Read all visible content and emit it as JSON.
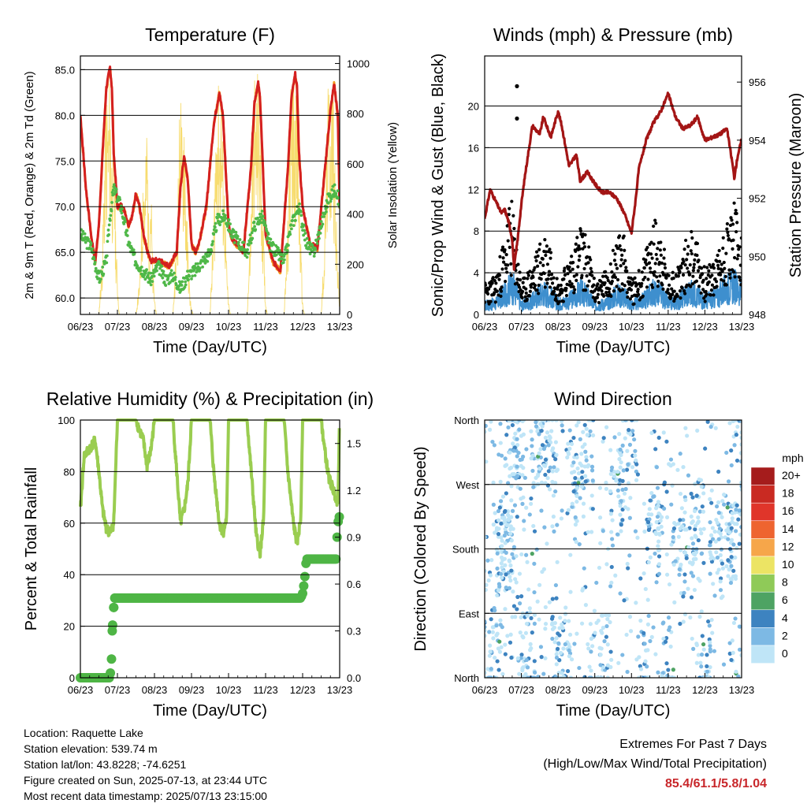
{
  "footer": {
    "location": "Location: Raquette Lake",
    "elevation": "Station elevation: 539.74 m",
    "latlon": "Station lat/lon: 43.8228; -74.6251",
    "created": "Figure created on Sun, 2025-07-13, at 23:44 UTC",
    "recent": "Most recent data timestamp: 2025/07/13 23:15:00",
    "extremes_title": "Extremes For Past 7 Days",
    "extremes_sub": "(High/Low/Max Wind/Total Precipitation)",
    "extremes_values": "85.4/61.1/5.8/1.04"
  },
  "colors": {
    "temp2m": "#d42020",
    "temp9m": "#f59a23",
    "dewpoint": "#4fb848",
    "solar": "#f7dc6f",
    "sonic_wind": "#3e8fce",
    "gust": "#000000",
    "pressure": "#a31515",
    "rh": "#9acd50",
    "precip": "#4eb545"
  },
  "chart_data": [
    {
      "type": "line",
      "title": "Temperature (F)",
      "xlabel": "Time (Day/UTC)",
      "ylabel": "2m & 9m T (Red, Orange) & 2m Td (Green)",
      "y2label": "Solar Insolation (Yellow)",
      "x_ticks": [
        "06/23",
        "07/23",
        "08/23",
        "09/23",
        "10/23",
        "11/23",
        "12/23",
        "13/23"
      ],
      "y_ticks": [
        "60.0",
        "65.0",
        "70.0",
        "75.0",
        "80.0",
        "85.0"
      ],
      "y2_ticks": [
        "0",
        "200",
        "400",
        "600",
        "800",
        "1000"
      ],
      "ylim": [
        58.2,
        86.5
      ],
      "y2lim": [
        0,
        1030
      ],
      "xlim": [
        0,
        7
      ],
      "grid": true,
      "series": [
        {
          "key": "temp2m",
          "x": [
            0,
            0.15,
            0.3,
            0.4,
            0.5,
            0.6,
            0.7,
            0.8,
            0.85,
            0.9,
            1.0,
            1.1,
            1.2,
            1.3,
            1.4,
            1.5,
            1.6,
            1.7,
            1.8,
            1.9,
            2.0,
            2.2,
            2.4,
            2.6,
            2.7,
            2.8,
            2.9,
            3.0,
            3.1,
            3.2,
            3.4,
            3.6,
            3.75,
            3.85,
            3.95,
            4.0,
            4.1,
            4.2,
            4.4,
            4.6,
            4.7,
            4.8,
            4.85,
            4.9,
            5.0,
            5.1,
            5.2,
            5.4,
            5.6,
            5.7,
            5.8,
            5.85,
            5.9,
            6.0,
            6.1,
            6.2,
            6.4,
            6.6,
            6.75,
            6.85,
            6.95,
            7.0
          ],
          "y": [
            80.0,
            72.0,
            66.5,
            64.0,
            68.0,
            76.0,
            83.0,
            85.3,
            83.0,
            76.0,
            70.0,
            70.2,
            69.5,
            68.0,
            69.0,
            71.5,
            70.0,
            67.0,
            65.2,
            64.0,
            64.2,
            64.0,
            63.5,
            65.0,
            72.0,
            75.5,
            73.0,
            66.0,
            65.0,
            66.0,
            70.0,
            79.0,
            82.5,
            80.0,
            72.0,
            68.0,
            66.5,
            66.0,
            65.0,
            74.0,
            81.5,
            83.5,
            82.0,
            77.0,
            67.0,
            65.5,
            64.0,
            63.0,
            74.0,
            82.0,
            84.5,
            83.0,
            76.0,
            70.0,
            68.0,
            66.0,
            65.5,
            74.0,
            80.5,
            83.5,
            80.0,
            70.0
          ]
        },
        {
          "key": "dewpoint",
          "x": [
            0,
            0.3,
            0.5,
            0.7,
            0.8,
            0.9,
            1.0,
            1.1,
            1.3,
            1.5,
            1.7,
            1.9,
            2.1,
            2.3,
            2.5,
            2.7,
            2.9,
            3.1,
            3.3,
            3.5,
            3.7,
            3.9,
            4.1,
            4.3,
            4.5,
            4.7,
            4.9,
            5.1,
            5.3,
            5.5,
            5.7,
            5.9,
            6.1,
            6.3,
            6.5,
            6.7,
            6.9,
            7.0
          ],
          "y": [
            67.0,
            65.5,
            62.0,
            64.0,
            69.0,
            72.0,
            71.0,
            70.0,
            66.0,
            64.0,
            63.0,
            62.0,
            63.5,
            62.0,
            62.5,
            61.0,
            62.5,
            63.0,
            64.0,
            65.0,
            68.5,
            69.0,
            67.0,
            66.0,
            65.0,
            68.0,
            69.0,
            66.0,
            65.0,
            64.0,
            68.0,
            70.0,
            66.0,
            65.0,
            68.0,
            71.0,
            72.0,
            70.0
          ]
        },
        {
          "key": "solar",
          "x": [
            0.05,
            0.25,
            0.5,
            0.6,
            0.65,
            0.7,
            0.75,
            0.8,
            0.85,
            0.9,
            0.95,
            1.0,
            1.05,
            1.2,
            1.5,
            1.6,
            1.65,
            1.7,
            1.75,
            1.8,
            1.85,
            1.9,
            1.95,
            2.0,
            2.05,
            2.2,
            2.5,
            2.6,
            2.65,
            2.7,
            2.75,
            2.8,
            2.85,
            2.9,
            2.95,
            3.0,
            3.05,
            3.2,
            3.5,
            3.6,
            3.65,
            3.7,
            3.75,
            3.8,
            3.85,
            3.9,
            3.95,
            4.0,
            4.05,
            4.2,
            4.5,
            4.6,
            4.65,
            4.7,
            4.75,
            4.8,
            4.85,
            4.9,
            4.95,
            5.0,
            5.05,
            5.2,
            5.5,
            5.6,
            5.65,
            5.7,
            5.75,
            5.8,
            5.85,
            5.9,
            5.95,
            6.0,
            6.05,
            6.2,
            6.5,
            6.6,
            6.65,
            6.7,
            6.75,
            6.8,
            6.85,
            6.9,
            6.95,
            7.0
          ],
          "y": [
            0,
            0,
            0,
            300,
            700,
            950,
            880,
            1000,
            700,
            900,
            400,
            150,
            0,
            0,
            0,
            150,
            400,
            700,
            550,
            850,
            300,
            650,
            200,
            80,
            0,
            0,
            0,
            350,
            650,
            980,
            700,
            950,
            500,
            300,
            100,
            20,
            0,
            0,
            0,
            400,
            800,
            1000,
            850,
            950,
            700,
            500,
            200,
            50,
            0,
            0,
            0,
            400,
            800,
            980,
            900,
            1000,
            850,
            600,
            300,
            50,
            0,
            0,
            0,
            400,
            850,
            980,
            950,
            1000,
            850,
            600,
            300,
            50,
            0,
            0,
            0,
            350,
            750,
            950,
            900,
            1000,
            800,
            500,
            200,
            40
          ]
        }
      ]
    },
    {
      "type": "scatter",
      "title": "Winds (mph) & Pressure (mb)",
      "xlabel": "Time (Day/UTC)",
      "ylabel": "Sonic/Prop Wind & Gust (Blue, Black)",
      "y2label": "Station Pressure (Maroon)",
      "x_ticks": [
        "06/23",
        "07/23",
        "08/23",
        "09/23",
        "10/23",
        "11/23",
        "12/23",
        "13/23"
      ],
      "y_ticks": [
        "0",
        "4",
        "8",
        "12",
        "16",
        "20"
      ],
      "y2_ticks": [
        "948",
        "950",
        "952",
        "954",
        "956"
      ],
      "ylim": [
        0,
        24.8
      ],
      "y2lim": [
        948,
        956.9
      ],
      "xlim": [
        0,
        7
      ],
      "grid": true,
      "series": [
        {
          "key": "pressure",
          "x": [
            0,
            0.15,
            0.3,
            0.45,
            0.55,
            0.65,
            0.75,
            0.8,
            0.9,
            1.0,
            1.1,
            1.3,
            1.5,
            1.6,
            1.8,
            2.0,
            2.1,
            2.3,
            2.5,
            2.6,
            2.8,
            3.0,
            3.2,
            3.4,
            3.6,
            3.8,
            4.0,
            4.1,
            4.2,
            4.4,
            4.6,
            4.8,
            5.0,
            5.2,
            5.4,
            5.6,
            5.8,
            6.0,
            6.2,
            6.4,
            6.6,
            6.75,
            6.8,
            6.9,
            7.0
          ],
          "y": [
            951.3,
            952.3,
            951.9,
            951.5,
            951.6,
            951.2,
            950.6,
            949.6,
            950.6,
            951.8,
            952.8,
            954.5,
            954.2,
            954.8,
            954.1,
            955.0,
            954.5,
            953.1,
            953.5,
            952.6,
            952.9,
            952.5,
            952.2,
            952.2,
            952.0,
            951.5,
            950.8,
            951.8,
            953.0,
            954.0,
            954.6,
            955.0,
            955.6,
            954.8,
            954.4,
            954.5,
            954.8,
            954.0,
            954.1,
            954.2,
            954.4,
            953.2,
            952.7,
            953.5,
            954.0
          ]
        },
        {
          "key": "sonic_wind",
          "x": [
            0,
            0.3,
            0.6,
            0.7,
            0.8,
            0.9,
            1.0,
            1.3,
            1.6,
            1.8,
            2.0,
            2.3,
            2.6,
            2.8,
            3.0,
            3.3,
            3.6,
            3.8,
            4.0,
            4.3,
            4.6,
            4.8,
            5.0,
            5.3,
            5.6,
            5.8,
            6.0,
            6.3,
            6.6,
            6.8,
            7.0
          ],
          "y": [
            1.0,
            1.2,
            2.5,
            3.0,
            2.8,
            2.0,
            1.0,
            1.5,
            2.5,
            2.0,
            1.2,
            1.5,
            2.5,
            2.0,
            1.0,
            1.2,
            2.2,
            2.0,
            1.0,
            1.5,
            2.5,
            2.2,
            1.2,
            1.5,
            2.5,
            2.0,
            1.5,
            1.8,
            3.0,
            3.2,
            2.5
          ]
        },
        {
          "key": "gust",
          "x": [
            0,
            0.3,
            0.6,
            0.7,
            0.8,
            0.9,
            1.0,
            1.3,
            1.6,
            1.8,
            2.0,
            2.3,
            2.6,
            2.8,
            3.0,
            3.3,
            3.6,
            3.8,
            4.0,
            4.3,
            4.6,
            4.8,
            5.0,
            5.3,
            5.6,
            5.8,
            6.0,
            6.3,
            6.6,
            6.8,
            7.0
          ],
          "y": [
            2.5,
            3.0,
            7.0,
            9.5,
            7.5,
            5.0,
            2.5,
            4.0,
            6.5,
            6.0,
            2.5,
            4.5,
            7.0,
            6.0,
            2.5,
            3.5,
            6.0,
            6.5,
            2.5,
            4.0,
            7.5,
            7.0,
            3.0,
            4.0,
            7.0,
            6.0,
            3.5,
            4.5,
            7.5,
            9.0,
            6.0
          ]
        }
      ]
    },
    {
      "type": "line",
      "title": "Relative Humidity (%) & Precipitation (in)",
      "xlabel": "Time (Day/UTC)",
      "ylabel": "Percent & Total Rainfall",
      "x_ticks": [
        "06/23",
        "07/23",
        "08/23",
        "09/23",
        "10/23",
        "11/23",
        "12/23",
        "13/23"
      ],
      "y_ticks": [
        "0",
        "20",
        "40",
        "60",
        "80",
        "100"
      ],
      "y2_ticks": [
        "0.0",
        "0.3",
        "0.6",
        "0.9",
        "1.2",
        "1.5"
      ],
      "ylim": [
        0,
        100
      ],
      "y2lim": [
        0,
        1.65
      ],
      "xlim": [
        0,
        7
      ],
      "grid": true,
      "series": [
        {
          "key": "rh",
          "x": [
            0,
            0.1,
            0.2,
            0.4,
            0.5,
            0.6,
            0.7,
            0.8,
            0.9,
            1.0,
            1.2,
            1.5,
            1.7,
            1.8,
            1.9,
            2.0,
            2.2,
            2.5,
            2.6,
            2.7,
            2.8,
            2.9,
            3.0,
            3.2,
            3.5,
            3.6,
            3.75,
            3.85,
            3.95,
            4.0,
            4.2,
            4.5,
            4.6,
            4.75,
            4.85,
            4.95,
            5.0,
            5.2,
            5.5,
            5.6,
            5.75,
            5.85,
            5.95,
            6.0,
            6.2,
            6.5,
            6.6,
            6.7,
            6.85,
            6.95,
            7.0
          ],
          "y": [
            65,
            86,
            88,
            92,
            80,
            65,
            58,
            56,
            60,
            100,
            100,
            100,
            92,
            82,
            88,
            100,
            100,
            100,
            80,
            60,
            65,
            75,
            100,
            100,
            100,
            80,
            60,
            56,
            62,
            100,
            100,
            100,
            82,
            55,
            48,
            62,
            100,
            100,
            100,
            80,
            60,
            52,
            62,
            100,
            100,
            100,
            88,
            78,
            72,
            68,
            100
          ]
        },
        {
          "key": "precip",
          "x": [
            0,
            0.8,
            0.85,
            0.86,
            0.9,
            0.92,
            1.0,
            2.0,
            3.0,
            4.0,
            5.0,
            5.95,
            6.0,
            6.05,
            6.1,
            6.2,
            6.5,
            6.9,
            6.93,
            6.96,
            7.0
          ],
          "y": [
            0,
            0,
            0.15,
            0.3,
            0.45,
            0.51,
            0.51,
            0.51,
            0.51,
            0.51,
            0.51,
            0.51,
            0.54,
            0.62,
            0.76,
            0.76,
            0.76,
            0.76,
            0.9,
            1.0,
            1.04
          ]
        }
      ]
    },
    {
      "type": "scatter",
      "title": "Wind Direction",
      "xlabel": "Time (Day/UTC)",
      "ylabel": "Direction (Colored By Speed)",
      "x_ticks": [
        "06/23",
        "07/23",
        "08/23",
        "09/23",
        "10/23",
        "11/23",
        "12/23",
        "13/23"
      ],
      "y_ticks": [
        "North",
        "East",
        "South",
        "West",
        "North"
      ],
      "ylim": [
        0,
        360
      ],
      "xlim": [
        0,
        7
      ],
      "grid": true,
      "legend": {
        "title": "mph",
        "labels": [
          "20+",
          "18",
          "16",
          "14",
          "12",
          "10",
          "8",
          "6",
          "4",
          "2",
          "0"
        ],
        "colors": [
          "#a51c1c",
          "#c92a22",
          "#e0352a",
          "#ee6430",
          "#f6a64a",
          "#ece464",
          "#8fca58",
          "#4ea363",
          "#3d83c0",
          "#7db9e4",
          "#bfe5f7"
        ],
        "placement": "right"
      },
      "series": [
        {
          "name": "",
          "x": [
            0.1,
            0.3,
            0.5,
            0.6,
            0.7,
            0.8,
            0.9,
            1.0,
            1.2,
            1.4,
            1.6,
            1.8,
            2.0,
            2.2,
            2.4,
            2.6,
            2.8,
            3.0,
            3.3,
            3.6,
            3.8,
            4.0,
            4.3,
            4.6,
            4.8,
            5.0,
            5.3,
            5.6,
            5.8,
            6.0,
            6.3,
            6.6,
            6.8,
            6.95
          ],
          "y": [
            20,
            40,
            180,
            185,
            175,
            340,
            330,
            60,
            30,
            300,
            320,
            330,
            20,
            40,
            270,
            300,
            330,
            20,
            35,
            260,
            290,
            340,
            30,
            200,
            240,
            30,
            180,
            200,
            220,
            25,
            190,
            200,
            195,
            350
          ]
        }
      ]
    }
  ]
}
